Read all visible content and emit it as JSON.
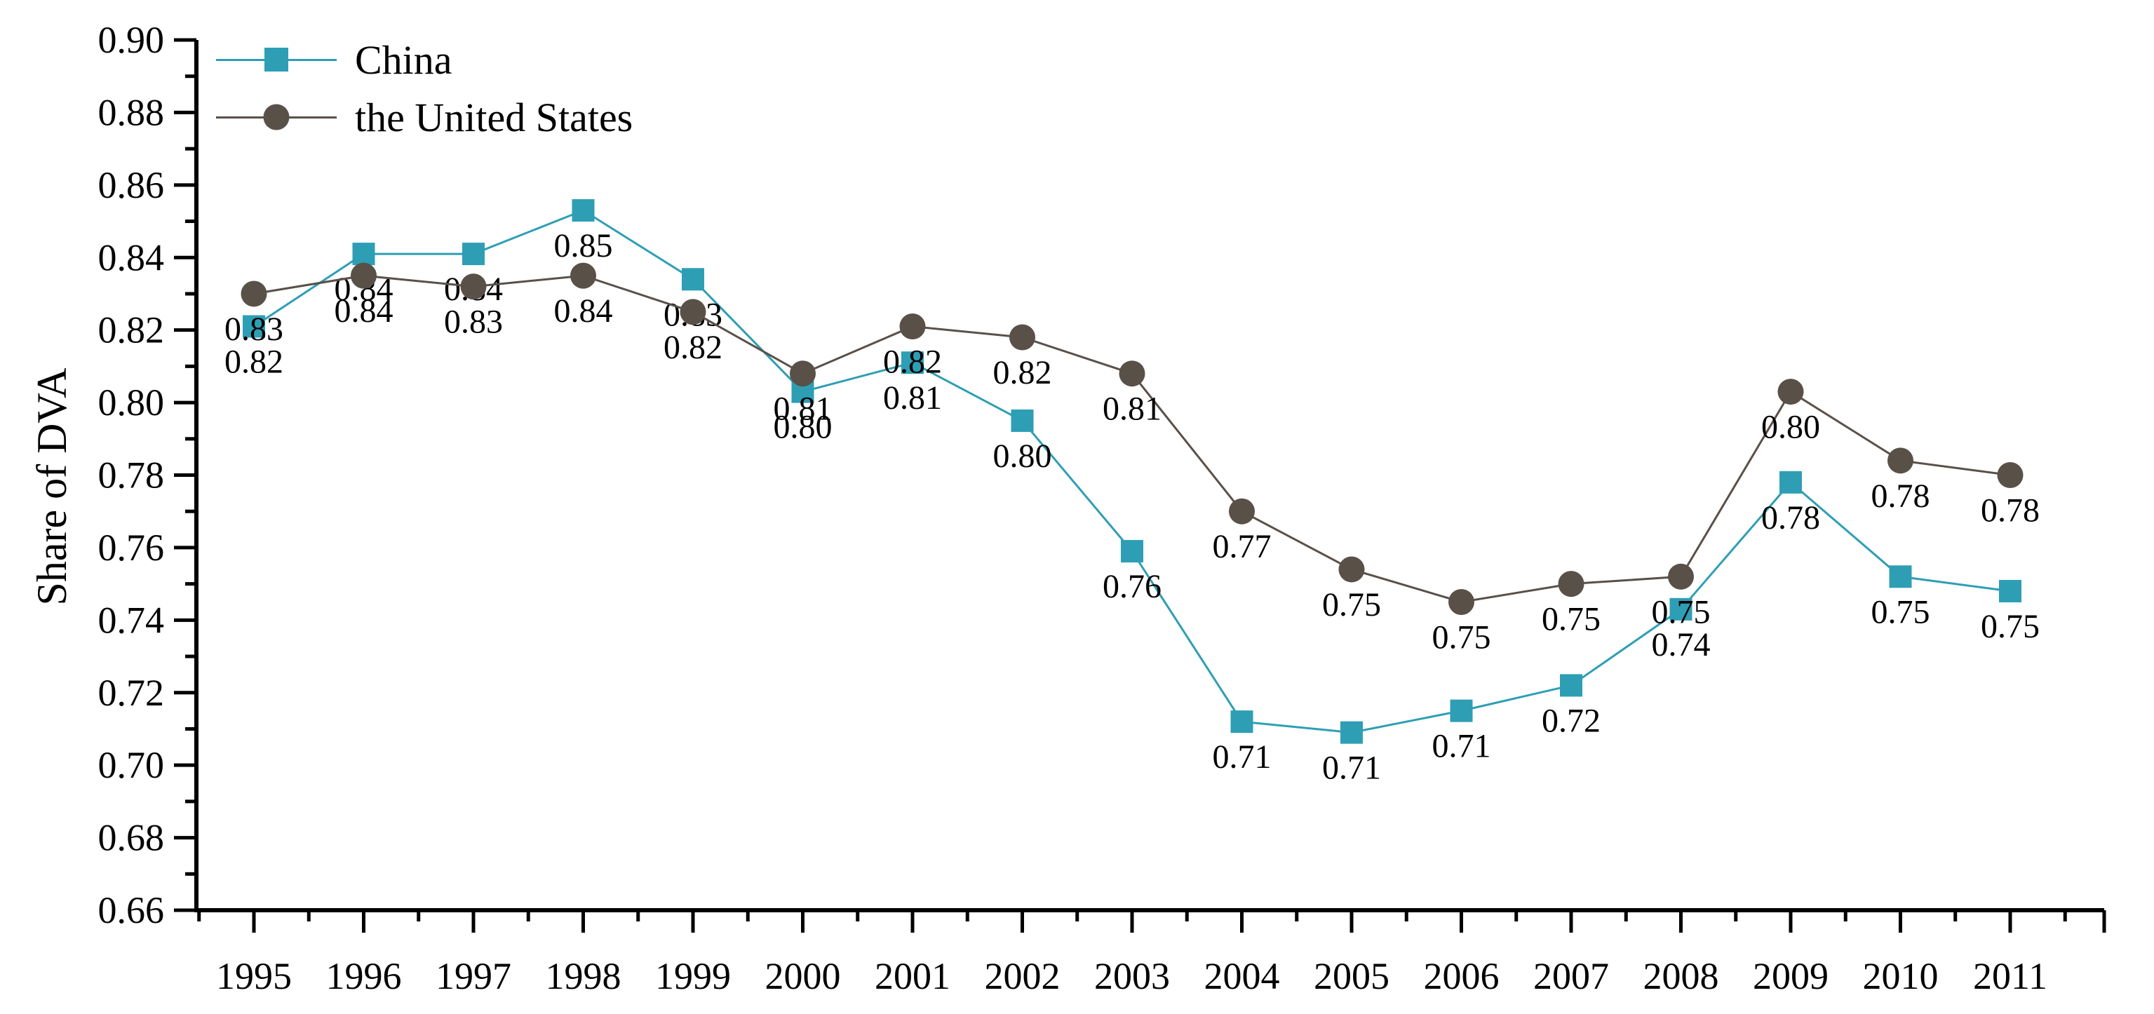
{
  "figure": {
    "background": "#ffffff",
    "text_color": "#000000"
  },
  "chart_data": {
    "type": "line",
    "title": "",
    "xlabel": "",
    "ylabel": "Share of DVA",
    "categories": [
      "1995",
      "1996",
      "1997",
      "1998",
      "1999",
      "2000",
      "2001",
      "2002",
      "2003",
      "2004",
      "2005",
      "2006",
      "2007",
      "2008",
      "2009",
      "2010",
      "2011"
    ],
    "ylim": [
      0.66,
      0.9
    ],
    "ytick_major_step": 0.02,
    "ytick_minor_step": 0.01,
    "ytick_labels": [
      "0.66",
      "0.68",
      "0.70",
      "0.72",
      "0.74",
      "0.76",
      "0.78",
      "0.80",
      "0.82",
      "0.84",
      "0.86",
      "0.88",
      "0.90"
    ],
    "grid": false,
    "legend_position": "top-left-inside",
    "series": [
      {
        "name": "China",
        "color": "#2E9EB5",
        "marker": "square",
        "values": [
          0.821,
          0.841,
          0.841,
          0.853,
          0.834,
          0.803,
          0.811,
          0.795,
          0.759,
          0.712,
          0.709,
          0.715,
          0.722,
          0.743,
          0.778,
          0.752,
          0.748
        ],
        "labels": [
          "0.82",
          "0.84",
          "0.84",
          "0.85",
          "0.83",
          "0.80",
          "0.81",
          "0.80",
          "0.76",
          "0.71",
          "0.71",
          "0.71",
          "0.72",
          "0.74",
          "0.78",
          "0.75",
          "0.75"
        ]
      },
      {
        "name": "the United States",
        "color": "#595048",
        "marker": "circle",
        "values": [
          0.83,
          0.835,
          0.832,
          0.835,
          0.825,
          0.808,
          0.821,
          0.818,
          0.808,
          0.77,
          0.754,
          0.745,
          0.75,
          0.752,
          0.803,
          0.784,
          0.78
        ],
        "labels": [
          "0.83",
          "0.84",
          "0.83",
          "0.84",
          "0.82",
          "0.81",
          "0.82",
          "0.82",
          "0.81",
          "0.77",
          "0.75",
          "0.75",
          "0.75",
          "0.75",
          "0.80",
          "0.78",
          "0.78"
        ]
      }
    ]
  }
}
